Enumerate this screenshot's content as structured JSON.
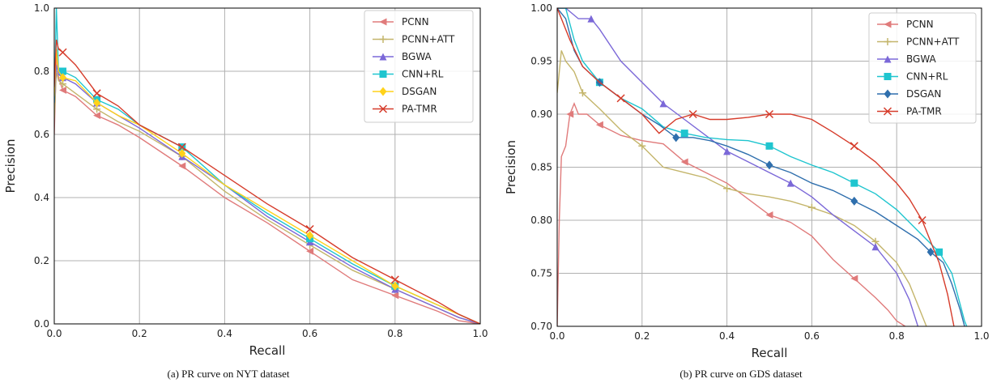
{
  "chart_data": [
    {
      "type": "line",
      "caption": "(a) PR curve on NYT dataset",
      "xlabel": "Recall",
      "ylabel": "Precision",
      "xlim": [
        0,
        1
      ],
      "ylim": [
        0,
        1
      ],
      "xticks": [
        "0.0",
        "0.2",
        "0.4",
        "0.6",
        "0.8",
        "1.0"
      ],
      "yticks": [
        "0.0",
        "0.2",
        "0.4",
        "0.6",
        "0.8",
        "1.0"
      ],
      "grid": true,
      "legend_position": "top-right",
      "series": [
        {
          "name": "PCNN",
          "color": "#e07b7b",
          "marker": "triangle-left",
          "points": [
            [
              0.0,
              0.6
            ],
            [
              0.005,
              0.85
            ],
            [
              0.01,
              0.78
            ],
            [
              0.02,
              0.74
            ],
            [
              0.05,
              0.72
            ],
            [
              0.1,
              0.66
            ],
            [
              0.15,
              0.63
            ],
            [
              0.2,
              0.59
            ],
            [
              0.3,
              0.5
            ],
            [
              0.4,
              0.4
            ],
            [
              0.5,
              0.32
            ],
            [
              0.6,
              0.23
            ],
            [
              0.7,
              0.14
            ],
            [
              0.8,
              0.09
            ],
            [
              0.9,
              0.04
            ],
            [
              0.95,
              0.01
            ],
            [
              1.0,
              0.0
            ]
          ]
        },
        {
          "name": "PCNN+ATT",
          "color": "#c4b56b",
          "marker": "plus",
          "points": [
            [
              0.0,
              0.65
            ],
            [
              0.005,
              0.8
            ],
            [
              0.01,
              0.77
            ],
            [
              0.02,
              0.76
            ],
            [
              0.05,
              0.73
            ],
            [
              0.1,
              0.68
            ],
            [
              0.15,
              0.64
            ],
            [
              0.2,
              0.61
            ],
            [
              0.3,
              0.53
            ],
            [
              0.4,
              0.42
            ],
            [
              0.5,
              0.33
            ],
            [
              0.6,
              0.25
            ],
            [
              0.7,
              0.17
            ],
            [
              0.8,
              0.11
            ],
            [
              0.9,
              0.05
            ],
            [
              0.95,
              0.02
            ],
            [
              1.0,
              0.0
            ]
          ]
        },
        {
          "name": "BGWA",
          "color": "#7b68d8",
          "marker": "triangle-up",
          "points": [
            [
              0.0,
              0.7
            ],
            [
              0.005,
              0.82
            ],
            [
              0.01,
              0.79
            ],
            [
              0.02,
              0.78
            ],
            [
              0.05,
              0.76
            ],
            [
              0.1,
              0.7
            ],
            [
              0.15,
              0.66
            ],
            [
              0.2,
              0.62
            ],
            [
              0.3,
              0.53
            ],
            [
              0.4,
              0.44
            ],
            [
              0.5,
              0.34
            ],
            [
              0.6,
              0.26
            ],
            [
              0.7,
              0.18
            ],
            [
              0.8,
              0.11
            ],
            [
              0.9,
              0.05
            ],
            [
              0.95,
              0.02
            ],
            [
              1.0,
              0.0
            ]
          ]
        },
        {
          "name": "CNN+RL",
          "color": "#1fc5cf",
          "marker": "square",
          "points": [
            [
              0.0,
              0.7
            ],
            [
              0.005,
              1.0
            ],
            [
              0.01,
              0.8
            ],
            [
              0.02,
              0.8
            ],
            [
              0.05,
              0.78
            ],
            [
              0.1,
              0.71
            ],
            [
              0.15,
              0.68
            ],
            [
              0.2,
              0.63
            ],
            [
              0.3,
              0.56
            ],
            [
              0.4,
              0.44
            ],
            [
              0.5,
              0.35
            ],
            [
              0.6,
              0.27
            ],
            [
              0.7,
              0.19
            ],
            [
              0.8,
              0.12
            ],
            [
              0.9,
              0.06
            ],
            [
              0.95,
              0.03
            ],
            [
              1.0,
              0.0
            ]
          ]
        },
        {
          "name": "DSGAN",
          "color": "#ffd21a",
          "marker": "diamond",
          "points": [
            [
              0.0,
              0.72
            ],
            [
              0.005,
              0.87
            ],
            [
              0.01,
              0.8
            ],
            [
              0.02,
              0.78
            ],
            [
              0.05,
              0.77
            ],
            [
              0.1,
              0.7
            ],
            [
              0.15,
              0.66
            ],
            [
              0.2,
              0.63
            ],
            [
              0.3,
              0.54
            ],
            [
              0.4,
              0.44
            ],
            [
              0.5,
              0.36
            ],
            [
              0.6,
              0.28
            ],
            [
              0.7,
              0.2
            ],
            [
              0.8,
              0.12
            ],
            [
              0.9,
              0.06
            ],
            [
              0.95,
              0.03
            ],
            [
              1.0,
              0.0
            ]
          ]
        },
        {
          "name": "PA-TMR",
          "color": "#d63c2b",
          "marker": "x",
          "points": [
            [
              0.0,
              0.75
            ],
            [
              0.005,
              0.9
            ],
            [
              0.01,
              0.87
            ],
            [
              0.02,
              0.86
            ],
            [
              0.05,
              0.82
            ],
            [
              0.1,
              0.73
            ],
            [
              0.15,
              0.69
            ],
            [
              0.2,
              0.63
            ],
            [
              0.3,
              0.56
            ],
            [
              0.4,
              0.47
            ],
            [
              0.5,
              0.38
            ],
            [
              0.6,
              0.3
            ],
            [
              0.7,
              0.21
            ],
            [
              0.8,
              0.14
            ],
            [
              0.9,
              0.07
            ],
            [
              0.95,
              0.03
            ],
            [
              1.0,
              0.0
            ]
          ]
        }
      ]
    },
    {
      "type": "line",
      "caption": "(b) PR curve on GDS dataset",
      "xlabel": "Recall",
      "ylabel": "Precision",
      "xlim": [
        0,
        1
      ],
      "ylim": [
        0.7,
        1
      ],
      "xticks": [
        "0.0",
        "0.2",
        "0.4",
        "0.6",
        "0.8",
        "1.0"
      ],
      "yticks": [
        "0.70",
        "0.75",
        "0.80",
        "0.85",
        "0.90",
        "0.95",
        "1.00"
      ],
      "grid": true,
      "legend_position": "top-right",
      "series": [
        {
          "name": "PCNN",
          "color": "#e07b7b",
          "marker": "triangle-left",
          "points": [
            [
              0.0,
              0.7
            ],
            [
              0.005,
              0.8
            ],
            [
              0.01,
              0.86
            ],
            [
              0.02,
              0.87
            ],
            [
              0.03,
              0.9
            ],
            [
              0.04,
              0.91
            ],
            [
              0.05,
              0.9
            ],
            [
              0.07,
              0.9
            ],
            [
              0.1,
              0.89
            ],
            [
              0.15,
              0.88
            ],
            [
              0.2,
              0.875
            ],
            [
              0.25,
              0.872
            ],
            [
              0.3,
              0.855
            ],
            [
              0.35,
              0.845
            ],
            [
              0.4,
              0.835
            ],
            [
              0.45,
              0.82
            ],
            [
              0.5,
              0.805
            ],
            [
              0.55,
              0.798
            ],
            [
              0.6,
              0.785
            ],
            [
              0.65,
              0.763
            ],
            [
              0.7,
              0.745
            ],
            [
              0.75,
              0.727
            ],
            [
              0.78,
              0.715
            ],
            [
              0.8,
              0.705
            ],
            [
              0.82,
              0.7
            ]
          ]
        },
        {
          "name": "PCNN+ATT",
          "color": "#c4b56b",
          "marker": "plus",
          "points": [
            [
              0.0,
              0.92
            ],
            [
              0.01,
              0.96
            ],
            [
              0.02,
              0.95
            ],
            [
              0.04,
              0.94
            ],
            [
              0.06,
              0.92
            ],
            [
              0.1,
              0.905
            ],
            [
              0.15,
              0.885
            ],
            [
              0.2,
              0.87
            ],
            [
              0.25,
              0.85
            ],
            [
              0.3,
              0.845
            ],
            [
              0.35,
              0.84
            ],
            [
              0.4,
              0.83
            ],
            [
              0.45,
              0.825
            ],
            [
              0.5,
              0.822
            ],
            [
              0.55,
              0.818
            ],
            [
              0.6,
              0.812
            ],
            [
              0.65,
              0.805
            ],
            [
              0.7,
              0.795
            ],
            [
              0.75,
              0.78
            ],
            [
              0.8,
              0.76
            ],
            [
              0.83,
              0.74
            ],
            [
              0.85,
              0.72
            ],
            [
              0.87,
              0.7
            ]
          ]
        },
        {
          "name": "BGWA",
          "color": "#7b68d8",
          "marker": "triangle-up",
          "points": [
            [
              0.0,
              1.0
            ],
            [
              0.02,
              1.0
            ],
            [
              0.05,
              0.99
            ],
            [
              0.08,
              0.99
            ],
            [
              0.1,
              0.98
            ],
            [
              0.15,
              0.95
            ],
            [
              0.2,
              0.93
            ],
            [
              0.25,
              0.91
            ],
            [
              0.3,
              0.895
            ],
            [
              0.35,
              0.88
            ],
            [
              0.4,
              0.865
            ],
            [
              0.45,
              0.855
            ],
            [
              0.5,
              0.845
            ],
            [
              0.55,
              0.835
            ],
            [
              0.6,
              0.822
            ],
            [
              0.65,
              0.805
            ],
            [
              0.7,
              0.79
            ],
            [
              0.75,
              0.775
            ],
            [
              0.8,
              0.75
            ],
            [
              0.83,
              0.725
            ],
            [
              0.85,
              0.7
            ]
          ]
        },
        {
          "name": "CNN+RL",
          "color": "#1fc5cf",
          "marker": "square",
          "points": [
            [
              0.0,
              1.0
            ],
            [
              0.02,
              1.0
            ],
            [
              0.04,
              0.97
            ],
            [
              0.06,
              0.95
            ],
            [
              0.1,
              0.93
            ],
            [
              0.15,
              0.915
            ],
            [
              0.2,
              0.905
            ],
            [
              0.25,
              0.888
            ],
            [
              0.3,
              0.882
            ],
            [
              0.35,
              0.878
            ],
            [
              0.4,
              0.876
            ],
            [
              0.45,
              0.875
            ],
            [
              0.5,
              0.87
            ],
            [
              0.55,
              0.86
            ],
            [
              0.6,
              0.852
            ],
            [
              0.65,
              0.845
            ],
            [
              0.7,
              0.835
            ],
            [
              0.75,
              0.825
            ],
            [
              0.8,
              0.81
            ],
            [
              0.85,
              0.79
            ],
            [
              0.9,
              0.77
            ],
            [
              0.93,
              0.75
            ],
            [
              0.95,
              0.72
            ],
            [
              0.96,
              0.705
            ],
            [
              0.965,
              0.7
            ]
          ]
        },
        {
          "name": "DSGAN",
          "color": "#2f6fad",
          "marker": "diamond",
          "points": [
            [
              0.0,
              1.0
            ],
            [
              0.02,
              0.99
            ],
            [
              0.04,
              0.96
            ],
            [
              0.06,
              0.945
            ],
            [
              0.1,
              0.93
            ],
            [
              0.15,
              0.915
            ],
            [
              0.2,
              0.9
            ],
            [
              0.24,
              0.89
            ],
            [
              0.28,
              0.878
            ],
            [
              0.32,
              0.878
            ],
            [
              0.36,
              0.875
            ],
            [
              0.4,
              0.87
            ],
            [
              0.45,
              0.862
            ],
            [
              0.5,
              0.852
            ],
            [
              0.55,
              0.845
            ],
            [
              0.6,
              0.835
            ],
            [
              0.65,
              0.828
            ],
            [
              0.7,
              0.818
            ],
            [
              0.75,
              0.808
            ],
            [
              0.8,
              0.795
            ],
            [
              0.85,
              0.782
            ],
            [
              0.88,
              0.77
            ],
            [
              0.91,
              0.76
            ],
            [
              0.93,
              0.74
            ],
            [
              0.95,
              0.715
            ],
            [
              0.96,
              0.7
            ]
          ]
        },
        {
          "name": "PA-TMR",
          "color": "#d63c2b",
          "marker": "x",
          "points": [
            [
              0.0,
              1.0
            ],
            [
              0.03,
              0.97
            ],
            [
              0.06,
              0.945
            ],
            [
              0.1,
              0.93
            ],
            [
              0.15,
              0.915
            ],
            [
              0.2,
              0.9
            ],
            [
              0.24,
              0.882
            ],
            [
              0.28,
              0.895
            ],
            [
              0.32,
              0.9
            ],
            [
              0.36,
              0.895
            ],
            [
              0.4,
              0.895
            ],
            [
              0.45,
              0.897
            ],
            [
              0.5,
              0.9
            ],
            [
              0.55,
              0.9
            ],
            [
              0.6,
              0.895
            ],
            [
              0.65,
              0.883
            ],
            [
              0.7,
              0.87
            ],
            [
              0.75,
              0.855
            ],
            [
              0.8,
              0.835
            ],
            [
              0.83,
              0.82
            ],
            [
              0.86,
              0.8
            ],
            [
              0.88,
              0.78
            ],
            [
              0.9,
              0.76
            ],
            [
              0.92,
              0.73
            ],
            [
              0.935,
              0.7
            ]
          ]
        }
      ]
    }
  ]
}
